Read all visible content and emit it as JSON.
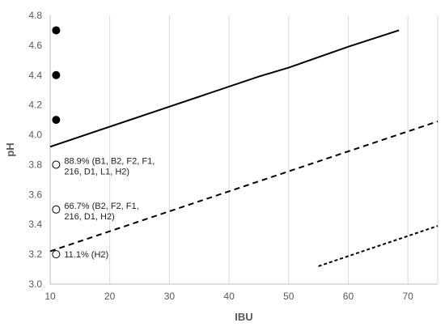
{
  "chart_data": {
    "type": "scatter",
    "xlabel": "IBU",
    "ylabel": "pH",
    "xlim": [
      10,
      75
    ],
    "ylim": [
      3.0,
      4.8
    ],
    "x_ticks": [
      "10",
      "20",
      "30",
      "40",
      "50",
      "60",
      "70"
    ],
    "y_ticks": [
      "3.0",
      "3.2",
      "3.4",
      "3.6",
      "3.8",
      "4.0",
      "4.2",
      "4.4",
      "4.6",
      "4.8"
    ],
    "grid": "vertical",
    "legend": "none",
    "series": [
      {
        "marker": "filled-circle",
        "x": [
          11,
          11,
          11
        ],
        "y": [
          4.7,
          4.4,
          4.1
        ]
      },
      {
        "marker": "open-circle",
        "x": [
          11,
          11,
          11
        ],
        "y": [
          3.8,
          3.5,
          3.2
        ]
      },
      {
        "line": "solid",
        "x": [
          10,
          45,
          50,
          60,
          68.5
        ],
        "y": [
          3.92,
          4.39,
          4.45,
          4.59,
          4.7
        ]
      },
      {
        "line": "dashed",
        "x": [
          10,
          75
        ],
        "y": [
          3.22,
          4.09
        ]
      },
      {
        "line": "dotted",
        "x": [
          55,
          75
        ],
        "y": [
          3.12,
          3.39
        ]
      }
    ],
    "annotations": [
      {
        "x": 11,
        "y": 3.8,
        "lines": [
          "88.9% (B1, B2, F2, F1,",
          "216, D1, L1, H2)"
        ]
      },
      {
        "x": 11,
        "y": 3.5,
        "lines": [
          "66.7% (B2, F2, F1,",
          "216, D1, H2)"
        ]
      },
      {
        "x": 11,
        "y": 3.2,
        "lines": [
          "11.1% (H2)"
        ]
      }
    ],
    "colors": {
      "marker": "#000000",
      "line": "#000000",
      "grid": "#d9d9d9",
      "axis_text": "#595959"
    }
  }
}
